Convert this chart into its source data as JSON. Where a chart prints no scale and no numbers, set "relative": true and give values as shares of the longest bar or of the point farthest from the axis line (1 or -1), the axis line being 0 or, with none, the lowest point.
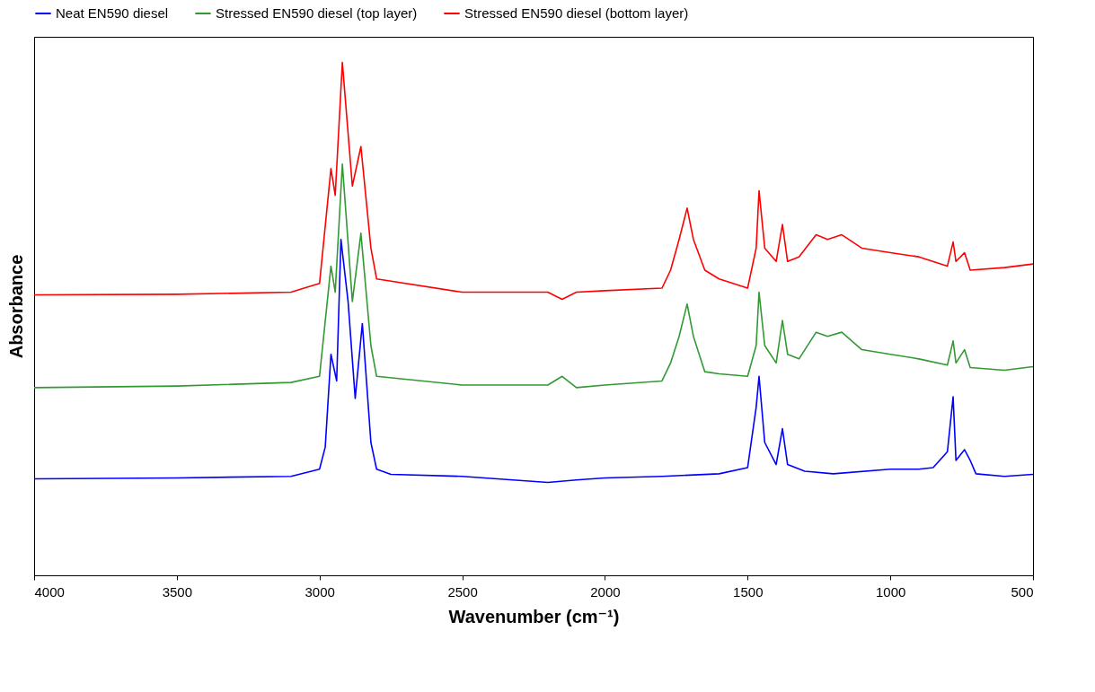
{
  "chart_data": {
    "type": "line",
    "relative": true,
    "xlabel": "Wavenumber (cm⁻¹)",
    "ylabel": "Absorbance",
    "xlim": [
      4000,
      500
    ],
    "xticks": [
      4000,
      3500,
      3000,
      2500,
      2000,
      1500,
      1000,
      500
    ],
    "grid": false,
    "legend": "top",
    "marker": "none",
    "line_style": "solid",
    "series": [
      {
        "name": "Neat EN590 diesel",
        "color": "#0000ff",
        "x": [
          4000,
          3500,
          3100,
          3000,
          2980,
          2960,
          2940,
          2925,
          2900,
          2875,
          2850,
          2820,
          2800,
          2750,
          2500,
          2200,
          2100,
          2000,
          1800,
          1600,
          1500,
          1470,
          1460,
          1440,
          1400,
          1378,
          1360,
          1300,
          1200,
          1000,
          900,
          850,
          800,
          780,
          770,
          740,
          720,
          700,
          600,
          500
        ],
        "values": [
          0.188,
          0.19,
          0.193,
          0.207,
          0.25,
          0.431,
          0.379,
          0.655,
          0.534,
          0.345,
          0.491,
          0.259,
          0.207,
          0.197,
          0.193,
          0.181,
          0.186,
          0.19,
          0.193,
          0.198,
          0.21,
          0.328,
          0.388,
          0.259,
          0.216,
          0.286,
          0.216,
          0.203,
          0.198,
          0.207,
          0.207,
          0.21,
          0.241,
          0.348,
          0.224,
          0.245,
          0.224,
          0.198,
          0.193,
          0.197
        ]
      },
      {
        "name": "Stressed EN590 diesel (top layer)",
        "color": "#339933",
        "x": [
          4000,
          3500,
          3100,
          3000,
          2960,
          2945,
          2920,
          2885,
          2855,
          2820,
          2800,
          2500,
          2200,
          2150,
          2100,
          2000,
          1800,
          1770,
          1740,
          1712,
          1690,
          1650,
          1600,
          1500,
          1470,
          1460,
          1440,
          1400,
          1378,
          1360,
          1320,
          1260,
          1220,
          1170,
          1100,
          1000,
          900,
          800,
          780,
          770,
          740,
          720,
          600,
          500
        ],
        "values": [
          0.366,
          0.369,
          0.376,
          0.388,
          0.603,
          0.552,
          0.802,
          0.534,
          0.667,
          0.448,
          0.388,
          0.371,
          0.371,
          0.388,
          0.366,
          0.371,
          0.379,
          0.414,
          0.466,
          0.529,
          0.466,
          0.397,
          0.393,
          0.388,
          0.448,
          0.552,
          0.448,
          0.414,
          0.497,
          0.431,
          0.422,
          0.474,
          0.466,
          0.474,
          0.44,
          0.431,
          0.422,
          0.41,
          0.457,
          0.414,
          0.44,
          0.405,
          0.4,
          0.407
        ]
      },
      {
        "name": "Stressed EN590 diesel (bottom layer)",
        "color": "#ff0000",
        "x": [
          4000,
          3500,
          3100,
          3000,
          2960,
          2945,
          2920,
          2885,
          2855,
          2820,
          2800,
          2500,
          2200,
          2150,
          2100,
          2000,
          1800,
          1770,
          1740,
          1712,
          1690,
          1650,
          1600,
          1500,
          1470,
          1460,
          1440,
          1400,
          1378,
          1360,
          1320,
          1260,
          1220,
          1170,
          1100,
          1000,
          900,
          800,
          780,
          770,
          740,
          720,
          600,
          500
        ],
        "values": [
          0.547,
          0.548,
          0.552,
          0.569,
          0.793,
          0.741,
          1,
          0.759,
          0.836,
          0.638,
          0.578,
          0.552,
          0.552,
          0.538,
          0.552,
          0.555,
          0.56,
          0.595,
          0.655,
          0.716,
          0.655,
          0.595,
          0.578,
          0.56,
          0.638,
          0.75,
          0.638,
          0.612,
          0.684,
          0.612,
          0.621,
          0.664,
          0.655,
          0.664,
          0.638,
          0.629,
          0.621,
          0.603,
          0.65,
          0.612,
          0.629,
          0.595,
          0.6,
          0.607
        ]
      }
    ]
  }
}
